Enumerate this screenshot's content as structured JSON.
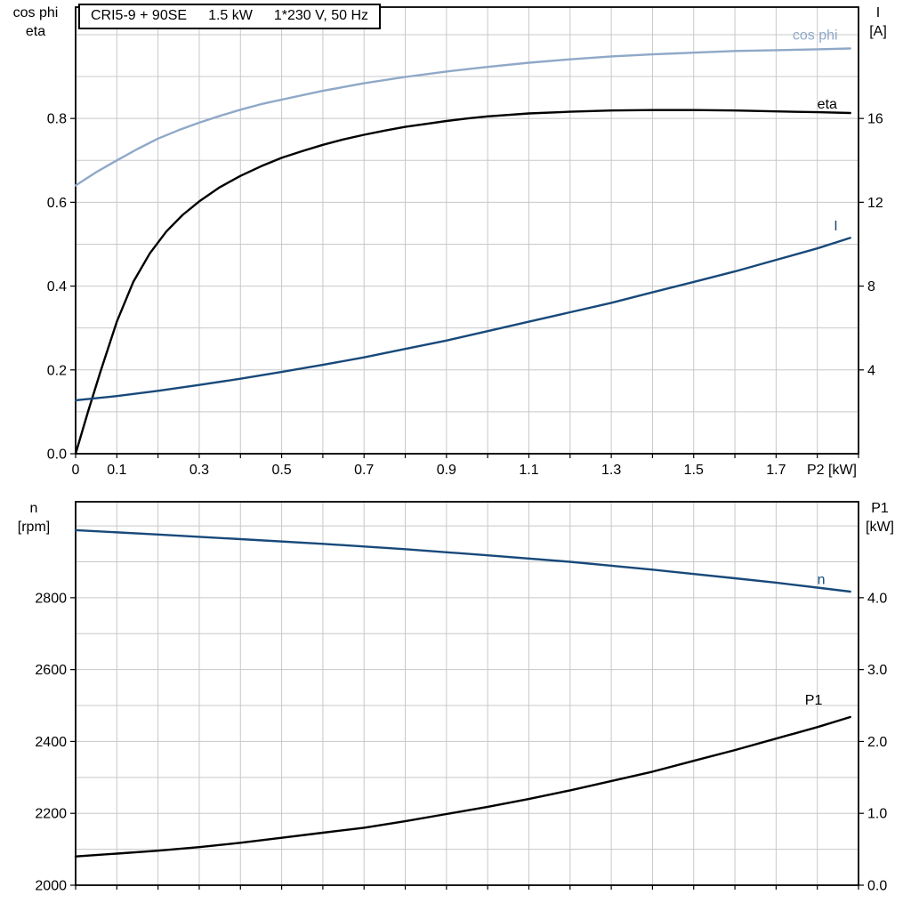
{
  "title_box": {
    "model": "CRI5-9 + 90SE",
    "power": "1.5 kW",
    "voltage": "1*230 V, 50 Hz"
  },
  "colors": {
    "cos_phi": "#8fa8c8",
    "eta": "#000000",
    "current": "#18497a",
    "speed": "#18497a",
    "p1": "#000000",
    "grid": "#c8c8c8",
    "axis": "#000000",
    "background": "#ffffff"
  },
  "chart_data": [
    {
      "type": "line",
      "name": "motor-performance",
      "xlabel": "P2 [kW]",
      "xlim": [
        0,
        1.9
      ],
      "x_grid_step": 0.1,
      "x_ticks": [
        0,
        0.1,
        0.3,
        0.5,
        0.7,
        0.9,
        1.1,
        1.3,
        1.5,
        1.7
      ],
      "x_tick_labels": [
        "0",
        "0.1",
        "0.3",
        "0.5",
        "0.7",
        "0.9",
        "1.1",
        "1.3",
        "1.5",
        "1.7"
      ],
      "grid": true,
      "legend_position": "inline-curve-labels",
      "left_axis": {
        "title_lines": [
          "cos phi",
          "eta"
        ],
        "lim": [
          0,
          1.0657
        ],
        "ticks": [
          0,
          0.2,
          0.4,
          0.6,
          0.8
        ],
        "tick_labels": [
          "0.0",
          "0.2",
          "0.4",
          "0.6",
          "0.8"
        ],
        "grid_start": 0.1,
        "grid_step": 0.1,
        "grid_max": 1.0
      },
      "right_axis": {
        "title_lines": [
          "I",
          "[A]"
        ],
        "lim": [
          0,
          21.314
        ],
        "ticks": [
          4,
          8,
          12,
          16
        ],
        "tick_labels": [
          "4",
          "8",
          "12",
          "16"
        ]
      },
      "series": [
        {
          "name": "cos phi",
          "axis": "left",
          "color_key": "cos_phi",
          "width": 2.4,
          "label": {
            "text": "cos phi",
            "x": 1.74,
            "y": 1.0,
            "anchor": "start"
          },
          "points": [
            [
              0,
              0.64
            ],
            [
              0.05,
              0.672
            ],
            [
              0.1,
              0.7
            ],
            [
              0.15,
              0.727
            ],
            [
              0.2,
              0.752
            ],
            [
              0.25,
              0.772
            ],
            [
              0.3,
              0.79
            ],
            [
              0.35,
              0.806
            ],
            [
              0.4,
              0.821
            ],
            [
              0.45,
              0.834
            ],
            [
              0.5,
              0.845
            ],
            [
              0.6,
              0.866
            ],
            [
              0.7,
              0.884
            ],
            [
              0.8,
              0.899
            ],
            [
              0.9,
              0.912
            ],
            [
              1.0,
              0.923
            ],
            [
              1.1,
              0.933
            ],
            [
              1.2,
              0.941
            ],
            [
              1.3,
              0.948
            ],
            [
              1.4,
              0.953
            ],
            [
              1.5,
              0.957
            ],
            [
              1.6,
              0.961
            ],
            [
              1.7,
              0.963
            ],
            [
              1.8,
              0.965
            ],
            [
              1.88,
              0.967
            ]
          ]
        },
        {
          "name": "eta",
          "axis": "left",
          "color_key": "eta",
          "width": 2.4,
          "label": {
            "text": "eta",
            "x": 1.8,
            "y": 0.835,
            "anchor": "start"
          },
          "points": [
            [
              0,
              0.0
            ],
            [
              0.03,
              0.1
            ],
            [
              0.06,
              0.195
            ],
            [
              0.1,
              0.315
            ],
            [
              0.14,
              0.41
            ],
            [
              0.18,
              0.478
            ],
            [
              0.22,
              0.53
            ],
            [
              0.26,
              0.57
            ],
            [
              0.3,
              0.602
            ],
            [
              0.35,
              0.636
            ],
            [
              0.4,
              0.663
            ],
            [
              0.45,
              0.686
            ],
            [
              0.5,
              0.706
            ],
            [
              0.55,
              0.722
            ],
            [
              0.6,
              0.737
            ],
            [
              0.65,
              0.75
            ],
            [
              0.7,
              0.761
            ],
            [
              0.75,
              0.771
            ],
            [
              0.8,
              0.78
            ],
            [
              0.85,
              0.787
            ],
            [
              0.9,
              0.794
            ],
            [
              0.95,
              0.8
            ],
            [
              1.0,
              0.805
            ],
            [
              1.1,
              0.812
            ],
            [
              1.2,
              0.816
            ],
            [
              1.3,
              0.819
            ],
            [
              1.4,
              0.82
            ],
            [
              1.5,
              0.82
            ],
            [
              1.6,
              0.819
            ],
            [
              1.7,
              0.817
            ],
            [
              1.8,
              0.815
            ],
            [
              1.88,
              0.813
            ]
          ]
        },
        {
          "name": "I",
          "axis": "right",
          "color_key": "current",
          "width": 2.4,
          "label": {
            "text": "I",
            "x": 1.84,
            "y": 10.9,
            "anchor": "start"
          },
          "points": [
            [
              0,
              2.55
            ],
            [
              0.1,
              2.75
            ],
            [
              0.2,
              3.0
            ],
            [
              0.3,
              3.28
            ],
            [
              0.4,
              3.58
            ],
            [
              0.5,
              3.9
            ],
            [
              0.6,
              4.24
            ],
            [
              0.7,
              4.6
            ],
            [
              0.8,
              5.0
            ],
            [
              0.9,
              5.4
            ],
            [
              1.0,
              5.85
            ],
            [
              1.1,
              6.3
            ],
            [
              1.2,
              6.75
            ],
            [
              1.3,
              7.2
            ],
            [
              1.4,
              7.7
            ],
            [
              1.5,
              8.2
            ],
            [
              1.6,
              8.7
            ],
            [
              1.7,
              9.25
            ],
            [
              1.8,
              9.8
            ],
            [
              1.88,
              10.3
            ]
          ]
        }
      ]
    },
    {
      "type": "line",
      "name": "speed-power",
      "xlabel": "",
      "xlim": [
        0,
        1.9
      ],
      "x_grid_step": 0.1,
      "x_ticks": [],
      "x_tick_labels": [],
      "grid": true,
      "legend_position": "inline-curve-labels",
      "left_axis": {
        "title_lines": [
          "n",
          "[rpm]"
        ],
        "lim": [
          2000,
          3067
        ],
        "ticks": [
          2000,
          2200,
          2400,
          2600,
          2800
        ],
        "tick_labels": [
          "2000",
          "2200",
          "2400",
          "2600",
          "2800"
        ],
        "grid_start": 2100,
        "grid_step": 100,
        "grid_max": 3000
      },
      "right_axis": {
        "title_lines": [
          "P1",
          "[kW]"
        ],
        "lim": [
          0,
          5.335
        ],
        "ticks": [
          0,
          1,
          2,
          3,
          4
        ],
        "tick_labels": [
          "0.0",
          "1.0",
          "2.0",
          "3.0",
          "4.0"
        ]
      },
      "series": [
        {
          "name": "n",
          "axis": "left",
          "color_key": "speed",
          "width": 2.4,
          "label": {
            "text": "n",
            "x": 1.8,
            "y": 2852,
            "anchor": "start"
          },
          "points": [
            [
              0,
              2988
            ],
            [
              0.2,
              2976
            ],
            [
              0.4,
              2963
            ],
            [
              0.6,
              2950
            ],
            [
              0.8,
              2935
            ],
            [
              1.0,
              2918
            ],
            [
              1.2,
              2900
            ],
            [
              1.4,
              2878
            ],
            [
              1.6,
              2854
            ],
            [
              1.7,
              2842
            ],
            [
              1.8,
              2828
            ],
            [
              1.88,
              2817
            ]
          ]
        },
        {
          "name": "P1",
          "axis": "right",
          "color_key": "p1",
          "width": 2.4,
          "label": {
            "text": "P1",
            "x": 1.77,
            "y": 2.58,
            "anchor": "start"
          },
          "points": [
            [
              0,
              0.4
            ],
            [
              0.1,
              0.44
            ],
            [
              0.2,
              0.48
            ],
            [
              0.3,
              0.53
            ],
            [
              0.4,
              0.59
            ],
            [
              0.5,
              0.66
            ],
            [
              0.6,
              0.73
            ],
            [
              0.7,
              0.8
            ],
            [
              0.8,
              0.89
            ],
            [
              0.9,
              0.99
            ],
            [
              1.0,
              1.09
            ],
            [
              1.1,
              1.2
            ],
            [
              1.2,
              1.32
            ],
            [
              1.3,
              1.45
            ],
            [
              1.4,
              1.58
            ],
            [
              1.5,
              1.73
            ],
            [
              1.6,
              1.88
            ],
            [
              1.7,
              2.04
            ],
            [
              1.8,
              2.2
            ],
            [
              1.88,
              2.34
            ]
          ]
        }
      ]
    }
  ]
}
